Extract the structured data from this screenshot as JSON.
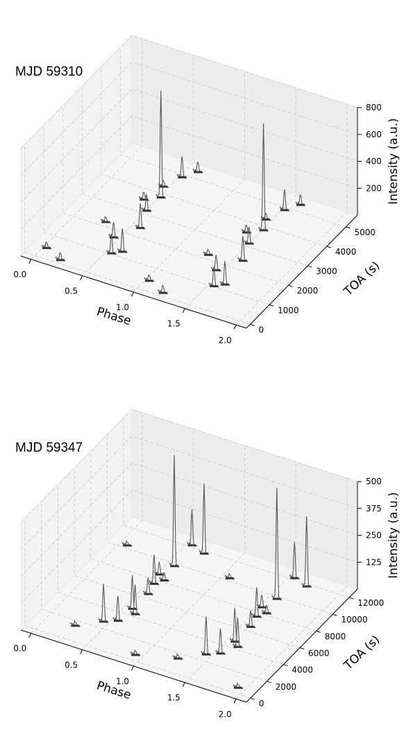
{
  "chart_data": [
    {
      "type": "scatter",
      "title": "MJD 59310",
      "xlabel": "Phase",
      "ylabel": "TOA (s)",
      "zlabel": "Intensity (a.u.)",
      "xticks": [
        "0.0",
        "0.5",
        "1.0",
        "1.5",
        "2.0"
      ],
      "yticks": [
        "0",
        "1000",
        "2000",
        "3000",
        "4000",
        "5000"
      ],
      "zticks": [
        "200",
        "400",
        "600",
        "800"
      ],
      "xlim": [
        -0.1,
        2.1
      ],
      "ylim": [
        -200,
        5600
      ],
      "zlim": [
        0,
        800
      ],
      "grid": true,
      "line_color": "#555555",
      "series": [
        {
          "toa": 150,
          "pulses": [
            {
              "phase": 0.22,
              "intensity": 60
            },
            {
              "phase": 1.22,
              "intensity": 60
            }
          ]
        },
        {
          "toa": 450,
          "pulses": [
            {
              "phase": 0.03,
              "intensity": 45
            },
            {
              "phase": 1.03,
              "intensity": 45
            }
          ]
        },
        {
          "toa": 1050,
          "pulses": [
            {
              "phase": 0.55,
              "intensity": 150
            },
            {
              "phase": 1.55,
              "intensity": 150
            }
          ]
        },
        {
          "toa": 1250,
          "pulses": [
            {
              "phase": 0.62,
              "intensity": 180
            },
            {
              "phase": 1.62,
              "intensity": 180
            }
          ]
        },
        {
          "toa": 1700,
          "pulses": [
            {
              "phase": 0.45,
              "intensity": 120
            },
            {
              "phase": 1.45,
              "intensity": 120
            }
          ]
        },
        {
          "toa": 2200,
          "pulses": [
            {
              "phase": 0.28,
              "intensity": 40
            },
            {
              "phase": 1.28,
              "intensity": 40
            }
          ]
        },
        {
          "toa": 2400,
          "pulses": [
            {
              "phase": 0.58,
              "intensity": 190
            },
            {
              "phase": 1.58,
              "intensity": 190
            }
          ]
        },
        {
          "toa": 3150,
          "pulses": [
            {
              "phase": 0.5,
              "intensity": 130
            },
            {
              "phase": 1.5,
              "intensity": 130
            }
          ]
        },
        {
          "toa": 3550,
          "pulses": [
            {
              "phase": 0.4,
              "intensity": 60
            },
            {
              "phase": 1.4,
              "intensity": 60
            }
          ]
        },
        {
          "toa": 3850,
          "pulses": [
            {
              "phase": 0.51,
              "intensity": 800
            },
            {
              "phase": 1.51,
              "intensity": 800
            }
          ]
        },
        {
          "toa": 4300,
          "pulses": [
            {
              "phase": 0.45,
              "intensity": 50
            },
            {
              "phase": 1.45,
              "intensity": 50
            }
          ]
        },
        {
          "toa": 4900,
          "pulses": [
            {
              "phase": 0.52,
              "intensity": 160
            },
            {
              "phase": 1.52,
              "intensity": 160
            }
          ]
        },
        {
          "toa": 5300,
          "pulses": [
            {
              "phase": 0.6,
              "intensity": 80
            },
            {
              "phase": 1.6,
              "intensity": 80
            }
          ]
        }
      ]
    },
    {
      "type": "scatter",
      "title": "MJD 59347",
      "xlabel": "Phase",
      "ylabel": "TOA (s)",
      "zlabel": "Intensity (a.u.)",
      "xticks": [
        "0.0",
        "0.5",
        "1.0",
        "1.5",
        "2.0"
      ],
      "yticks": [
        "0",
        "2000",
        "4000",
        "6000",
        "8000",
        "10000",
        "12000"
      ],
      "zticks": [
        "125",
        "250",
        "375",
        "500"
      ],
      "xlim": [
        -0.1,
        2.1
      ],
      "ylim": [
        -500,
        13000
      ],
      "zlim": [
        0,
        500
      ],
      "grid": true,
      "line_color": "#555555",
      "series": [
        {
          "toa": 600,
          "pulses": [
            {
              "phase": 0.93,
              "intensity": 20
            },
            {
              "phase": 1.93,
              "intensity": 20
            }
          ]
        },
        {
          "toa": 1500,
          "pulses": [
            {
              "phase": 0.27,
              "intensity": 20
            },
            {
              "phase": 1.27,
              "intensity": 20
            }
          ]
        },
        {
          "toa": 2700,
          "pulses": [
            {
              "phase": 0.45,
              "intensity": 180
            },
            {
              "phase": 1.45,
              "intensity": 180
            }
          ]
        },
        {
          "toa": 3200,
          "pulses": [
            {
              "phase": 0.55,
              "intensity": 120
            },
            {
              "phase": 1.55,
              "intensity": 120
            }
          ]
        },
        {
          "toa": 4300,
          "pulses": [
            {
              "phase": 0.63,
              "intensity": 140
            },
            {
              "phase": 1.63,
              "intensity": 140
            }
          ]
        },
        {
          "toa": 4700,
          "pulses": [
            {
              "phase": 0.57,
              "intensity": 160
            },
            {
              "phase": 1.57,
              "intensity": 160
            }
          ]
        },
        {
          "toa": 6500,
          "pulses": [
            {
              "phase": 0.58,
              "intensity": 80
            },
            {
              "phase": 1.58,
              "intensity": 80
            }
          ]
        },
        {
          "toa": 7600,
          "pulses": [
            {
              "phase": 0.55,
              "intensity": 140
            },
            {
              "phase": 1.55,
              "intensity": 140
            }
          ]
        },
        {
          "toa": 8200,
          "pulses": [
            {
              "phase": 0.6,
              "intensity": 40
            },
            {
              "phase": 1.6,
              "intensity": 40
            }
          ]
        },
        {
          "toa": 8600,
          "pulses": [
            {
              "phase": 0.52,
              "intensity": 60
            },
            {
              "phase": 1.52,
              "intensity": 60
            }
          ]
        },
        {
          "toa": 9800,
          "pulses": [
            {
              "phase": 0.57,
              "intensity": 520
            },
            {
              "phase": 1.57,
              "intensity": 520
            }
          ]
        },
        {
          "toa": 10300,
          "pulses": [
            {
              "phase": 0.07,
              "intensity": 20
            },
            {
              "phase": 1.07,
              "intensity": 20
            }
          ]
        },
        {
          "toa": 11800,
          "pulses": [
            {
              "phase": 0.7,
              "intensity": 330
            },
            {
              "phase": 1.7,
              "intensity": 330
            }
          ]
        },
        {
          "toa": 12200,
          "pulses": [
            {
              "phase": 0.55,
              "intensity": 170
            },
            {
              "phase": 1.55,
              "intensity": 170
            }
          ]
        }
      ]
    }
  ]
}
